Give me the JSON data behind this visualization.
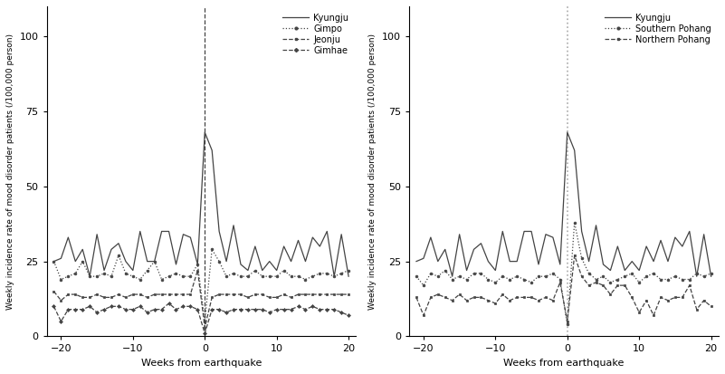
{
  "weeks": [
    -21,
    -20,
    -19,
    -18,
    -17,
    -16,
    -15,
    -14,
    -13,
    -12,
    -11,
    -10,
    -9,
    -8,
    -7,
    -6,
    -5,
    -4,
    -3,
    -2,
    -1,
    0,
    1,
    2,
    3,
    4,
    5,
    6,
    7,
    8,
    9,
    10,
    11,
    12,
    13,
    14,
    15,
    16,
    17,
    18,
    19,
    20
  ],
  "left_Kyungju": [
    25,
    26,
    33,
    25,
    29,
    20,
    34,
    22,
    29,
    31,
    25,
    22,
    35,
    25,
    25,
    35,
    35,
    24,
    34,
    33,
    24,
    68,
    62,
    35,
    25,
    37,
    24,
    22,
    30,
    22,
    25,
    22,
    30,
    25,
    32,
    25,
    33,
    30,
    35,
    20,
    34,
    20
  ],
  "left_Gimpo": [
    25,
    19,
    20,
    21,
    25,
    20,
    20,
    21,
    20,
    27,
    21,
    20,
    19,
    22,
    25,
    19,
    20,
    21,
    20,
    20,
    24,
    5,
    29,
    25,
    20,
    21,
    20,
    20,
    22,
    20,
    20,
    20,
    22,
    20,
    20,
    19,
    20,
    21,
    21,
    20,
    21,
    22
  ],
  "left_Jeonju": [
    15,
    12,
    14,
    14,
    13,
    13,
    14,
    13,
    13,
    14,
    13,
    14,
    14,
    13,
    14,
    14,
    14,
    14,
    14,
    14,
    22,
    3,
    13,
    14,
    14,
    14,
    14,
    13,
    14,
    14,
    13,
    13,
    14,
    13,
    14,
    14,
    14,
    14,
    14,
    14,
    14,
    14
  ],
  "left_Gimhae": [
    10,
    5,
    9,
    9,
    9,
    10,
    8,
    9,
    10,
    10,
    9,
    9,
    10,
    8,
    9,
    9,
    11,
    9,
    10,
    10,
    9,
    1,
    9,
    9,
    8,
    9,
    9,
    9,
    9,
    9,
    8,
    9,
    9,
    9,
    10,
    9,
    10,
    9,
    9,
    9,
    8,
    7
  ],
  "right_Kyungju": [
    25,
    26,
    33,
    25,
    29,
    20,
    34,
    22,
    29,
    31,
    25,
    22,
    35,
    25,
    25,
    35,
    35,
    24,
    34,
    33,
    24,
    68,
    62,
    35,
    25,
    37,
    24,
    22,
    30,
    22,
    25,
    22,
    30,
    25,
    32,
    25,
    33,
    30,
    35,
    20,
    34,
    20
  ],
  "right_Southern_Pohang": [
    20,
    17,
    21,
    20,
    22,
    19,
    20,
    19,
    21,
    21,
    19,
    18,
    20,
    19,
    20,
    19,
    18,
    20,
    20,
    21,
    19,
    4,
    38,
    26,
    21,
    19,
    20,
    18,
    19,
    20,
    21,
    18,
    20,
    21,
    19,
    19,
    20,
    19,
    19,
    21,
    20,
    21
  ],
  "right_Northern_Pohang": [
    13,
    7,
    13,
    14,
    13,
    12,
    14,
    12,
    13,
    13,
    12,
    11,
    14,
    12,
    13,
    13,
    13,
    12,
    13,
    12,
    18,
    5,
    27,
    20,
    17,
    18,
    17,
    14,
    17,
    17,
    13,
    8,
    12,
    7,
    13,
    12,
    13,
    13,
    17,
    9,
    12,
    10
  ],
  "ylabel": "Weekly incidence rate of mood disorder patients (/100,000 person)",
  "xlabel": "Weeks from earthquake",
  "ylim": [
    0,
    110
  ],
  "yticks": [
    0,
    25,
    50,
    75,
    100
  ],
  "xlim": [
    -22,
    21
  ],
  "xticks": [
    -20,
    -10,
    0,
    10,
    20
  ],
  "left_legend_names": [
    "Kyungju",
    "Gimpo",
    "Jeonju",
    "Gimhae"
  ],
  "right_legend_names": [
    "Kyungju",
    "Southern Pohang",
    "Northern Pohang"
  ],
  "color": "#444444",
  "vline_color_left": "#444444",
  "vline_color_right": "#aaaaaa",
  "lw": 0.9,
  "ms": 2.0
}
